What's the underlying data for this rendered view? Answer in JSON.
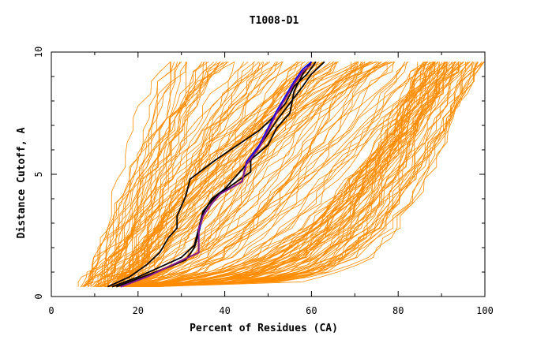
{
  "chart_data": {
    "type": "line",
    "title": "T1008-D1",
    "xlabel": "Percent of Residues (CA)",
    "ylabel": "Distance Cutoff, A",
    "xlim": [
      0,
      100
    ],
    "ylim": [
      0,
      10
    ],
    "xticks": [
      0,
      20,
      40,
      60,
      80,
      100
    ],
    "yticks": [
      0,
      5,
      10
    ],
    "grid": false,
    "legend": "none",
    "colors": {
      "background_models": "#ff8c00",
      "highlight_black": "#000000",
      "highlight_blue": "#0000ff",
      "highlight_purple": "#8b1a8b"
    },
    "background_series_count": 180,
    "highlighted_series": [
      {
        "color": "black",
        "points": [
          [
            13,
            0.4
          ],
          [
            18,
            0.8
          ],
          [
            22,
            1.3
          ],
          [
            25,
            1.8
          ],
          [
            27,
            2.4
          ],
          [
            29,
            2.8
          ],
          [
            29,
            3.3
          ],
          [
            31,
            4.1
          ],
          [
            32,
            4.8
          ],
          [
            38,
            5.6
          ],
          [
            43,
            6.2
          ],
          [
            48,
            6.8
          ],
          [
            51,
            7.3
          ],
          [
            54,
            7.9
          ],
          [
            56,
            8.6
          ],
          [
            59,
            9.1
          ],
          [
            61,
            9.6
          ]
        ]
      },
      {
        "color": "black",
        "points": [
          [
            14,
            0.4
          ],
          [
            20,
            0.8
          ],
          [
            25,
            1.2
          ],
          [
            30,
            1.6
          ],
          [
            33,
            2.1
          ],
          [
            34,
            2.8
          ],
          [
            35,
            3.5
          ],
          [
            38,
            4.1
          ],
          [
            42,
            4.6
          ],
          [
            46,
            5.1
          ],
          [
            46,
            5.6
          ],
          [
            50,
            6.2
          ],
          [
            52,
            6.9
          ],
          [
            55,
            7.5
          ],
          [
            56,
            8.4
          ],
          [
            58,
            9.1
          ],
          [
            60,
            9.6
          ]
        ]
      },
      {
        "color": "black",
        "points": [
          [
            15,
            0.4
          ],
          [
            21,
            0.8
          ],
          [
            27,
            1.2
          ],
          [
            31,
            1.5
          ],
          [
            33,
            2.0
          ],
          [
            34,
            2.6
          ],
          [
            35,
            3.4
          ],
          [
            37,
            4.0
          ],
          [
            40,
            4.4
          ],
          [
            43,
            5.0
          ],
          [
            46,
            5.6
          ],
          [
            49,
            6.4
          ],
          [
            52,
            7.2
          ],
          [
            55,
            7.9
          ],
          [
            58,
            8.6
          ],
          [
            60,
            9.1
          ],
          [
            63,
            9.6
          ]
        ]
      },
      {
        "color": "blue",
        "points": [
          [
            16,
            0.4
          ],
          [
            22,
            0.8
          ],
          [
            28,
            1.3
          ],
          [
            34,
            1.8
          ],
          [
            34,
            2.7
          ],
          [
            35,
            3.3
          ],
          [
            37,
            3.8
          ],
          [
            39,
            4.2
          ],
          [
            44,
            4.7
          ],
          [
            45,
            5.5
          ],
          [
            48,
            6.2
          ],
          [
            50,
            6.9
          ],
          [
            52,
            7.6
          ],
          [
            54,
            8.2
          ],
          [
            56,
            8.8
          ],
          [
            58,
            9.3
          ],
          [
            60,
            9.6
          ]
        ]
      },
      {
        "color": "purple",
        "points": [
          [
            16,
            0.4
          ],
          [
            22,
            0.8
          ],
          [
            28,
            1.3
          ],
          [
            34,
            1.8
          ],
          [
            34,
            2.8
          ],
          [
            35,
            3.3
          ],
          [
            37,
            3.8
          ],
          [
            39,
            4.2
          ],
          [
            44,
            4.7
          ],
          [
            45,
            5.4
          ],
          [
            48,
            6.1
          ],
          [
            50,
            6.8
          ],
          [
            52,
            7.5
          ],
          [
            54,
            8.1
          ],
          [
            56,
            8.7
          ],
          [
            58,
            9.2
          ],
          [
            60,
            9.5
          ]
        ]
      }
    ]
  }
}
